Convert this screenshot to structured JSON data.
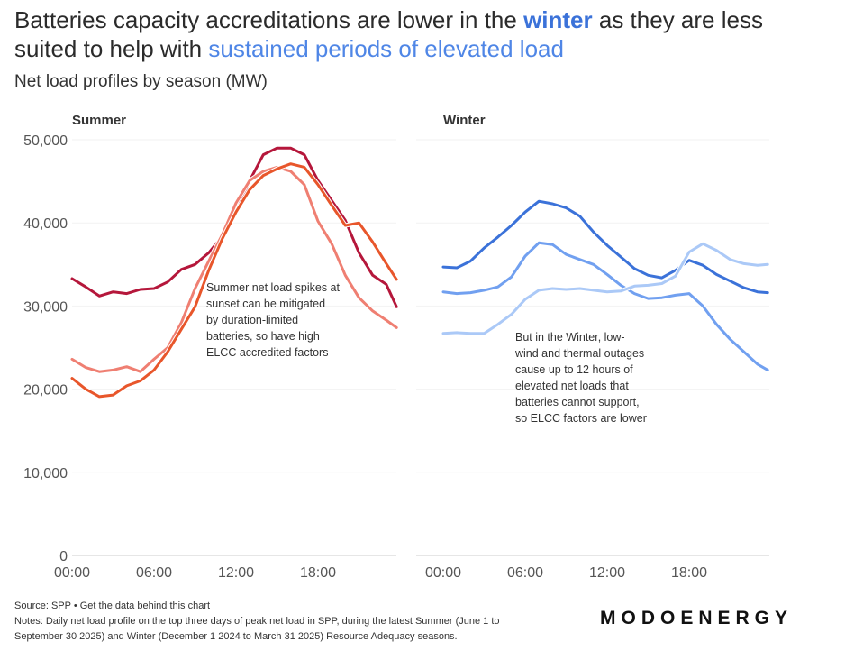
{
  "title": {
    "part1": "Batteries capacity accreditations are lower in the ",
    "highlight1": "winter",
    "part2": " as they are less suited to help with ",
    "highlight2": "sustained periods of elevated load"
  },
  "subtitle": "Net load profiles by season (MW)",
  "colors": {
    "highlight1": "#3b72d9",
    "highlight2": "#4f86e6"
  },
  "footer": {
    "source": "Source: SPP • ",
    "link": "Get the data behind this chart",
    "notes_line1": "Notes: Daily net load profile on the top three days of peak net load in SPP, during the latest Summer (June 1 to",
    "notes_line2": "September 30 2025) and Winter (December 1 2024 to March 31 2025) Resource Adequacy seasons."
  },
  "logo": "MODOENERGY",
  "chart_data": [
    {
      "type": "line",
      "title": "Summer",
      "ylim": [
        0,
        50000
      ],
      "yticks": [
        "0",
        "10,000",
        "20,000",
        "30,000",
        "40,000",
        "50,000"
      ],
      "xticks": [
        "00:00",
        "06:00",
        "12:00",
        "18:00"
      ],
      "grid": true,
      "annotation": [
        "Summer net load spikes at",
        "sunset can be mitigated",
        "by duration-limited",
        "batteries, so have high",
        "ELCC accredited factors"
      ],
      "x": [
        "00:00",
        "01:00",
        "02:00",
        "03:00",
        "04:00",
        "05:00",
        "06:00",
        "07:00",
        "08:00",
        "09:00",
        "10:00",
        "11:00",
        "12:00",
        "13:00",
        "14:00",
        "15:00",
        "16:00",
        "17:00",
        "18:00",
        "19:00",
        "20:00",
        "21:00",
        "22:00",
        "23:00",
        "23:45"
      ],
      "series": [
        {
          "color": "#b5173b",
          "values": [
            33300,
            32300,
            31200,
            31700,
            31500,
            32000,
            32100,
            32900,
            34400,
            35000,
            36400,
            38400,
            41200,
            45100,
            48200,
            49000,
            49000,
            48200,
            45100,
            42700,
            40300,
            36400,
            33700,
            32600,
            29900
          ]
        },
        {
          "color": "#ef7f72",
          "values": [
            23600,
            22600,
            22100,
            22300,
            22700,
            22100,
            23600,
            25000,
            28000,
            32100,
            35400,
            38600,
            42400,
            45100,
            46200,
            46700,
            46200,
            44600,
            40200,
            37500,
            33700,
            31000,
            29400,
            28300,
            27400
          ]
        },
        {
          "color": "#e8562b",
          "values": [
            21300,
            20000,
            19100,
            19300,
            20400,
            21000,
            22300,
            24500,
            27200,
            29900,
            34300,
            38100,
            41300,
            44000,
            45700,
            46500,
            47100,
            46700,
            44600,
            42100,
            39700,
            40000,
            37700,
            35100,
            33200
          ]
        }
      ]
    },
    {
      "type": "line",
      "title": "Winter",
      "ylim": [
        0,
        50000
      ],
      "xticks": [
        "00:00",
        "06:00",
        "12:00",
        "18:00"
      ],
      "grid": true,
      "annotation": [
        "But in the Winter, low-",
        "wind and thermal outages",
        "cause up to 12 hours of",
        "elevated net loads that",
        "batteries cannot support,",
        "so ELCC factors are lower"
      ],
      "x": [
        "00:00",
        "01:00",
        "02:00",
        "03:00",
        "04:00",
        "05:00",
        "06:00",
        "07:00",
        "08:00",
        "09:00",
        "10:00",
        "11:00",
        "12:00",
        "13:00",
        "14:00",
        "15:00",
        "16:00",
        "17:00",
        "18:00",
        "19:00",
        "20:00",
        "21:00",
        "22:00",
        "23:00",
        "23:45"
      ],
      "series": [
        {
          "color": "#3b72d9",
          "values": [
            34700,
            34600,
            35400,
            37000,
            38300,
            39700,
            41300,
            42600,
            42300,
            41800,
            40800,
            38900,
            37300,
            35900,
            34500,
            33700,
            33400,
            34300,
            35500,
            34900,
            33800,
            33000,
            32200,
            31700,
            31600
          ]
        },
        {
          "color": "#71a0f0",
          "values": [
            31700,
            31500,
            31600,
            31900,
            32300,
            33500,
            36000,
            37600,
            37400,
            36200,
            35600,
            35000,
            33800,
            32500,
            31500,
            30900,
            31000,
            31300,
            31500,
            30000,
            27800,
            26000,
            24500,
            23000,
            22300
          ]
        },
        {
          "color": "#abc9f7",
          "values": [
            26700,
            26800,
            26700,
            26700,
            27800,
            29000,
            30800,
            31900,
            32100,
            32000,
            32100,
            31900,
            31700,
            31800,
            32400,
            32500,
            32700,
            33600,
            36500,
            37500,
            36700,
            35600,
            35100,
            34900,
            35000
          ]
        }
      ]
    }
  ]
}
